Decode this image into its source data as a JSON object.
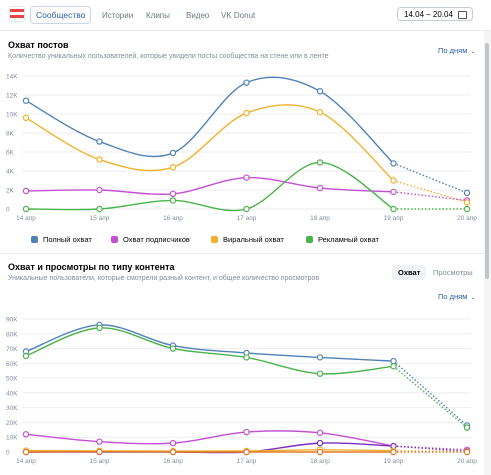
{
  "nav": {
    "tabs": [
      {
        "label": "Сообщество",
        "active": true
      },
      {
        "label": "Истории",
        "active": false
      },
      {
        "label": "Клипы",
        "active": false
      },
      {
        "label": "Видео",
        "active": false
      },
      {
        "label": "VK Donut",
        "active": false
      }
    ],
    "date_range": "14.04 – 20.04",
    "date_icon": "calendar-icon"
  },
  "section1": {
    "title": "Охват постов",
    "subtitle": "Количество уникальных пользователей, которые увидели посты сообщества на стене или в ленте",
    "period_label": "По дням"
  },
  "section2": {
    "title": "Охват и просмотры по типу контента",
    "subtitle": "Уникальные пользователи, которые смотрели разный контент, и общее количество просмотров",
    "period_label": "По дням",
    "toggle": [
      "Охват",
      "Просмотры"
    ]
  },
  "colors": {
    "blue": "#5181b8",
    "pink": "#c44fd4",
    "yellow": "#f2b12d",
    "green": "#4bb34b",
    "purple": "#792ec0",
    "orange": "#e07b2a",
    "teal": "#3aa79e"
  },
  "chart_data": [
    {
      "type": "line",
      "categories": [
        "14 апр",
        "15 апр",
        "16 апр",
        "17 апр",
        "18 апр",
        "19 апр",
        "20 апр"
      ],
      "yticks": [
        "0",
        "2K",
        "4K",
        "6K",
        "8K",
        "10K",
        "12K",
        "14K"
      ],
      "ylim": [
        0,
        14000
      ],
      "grid": true,
      "legend": "bottom",
      "series": [
        {
          "name": "Полный охват",
          "color": "#5181b8",
          "values": [
            11400,
            7100,
            5900,
            13300,
            12400,
            4800,
            1700
          ]
        },
        {
          "name": "Охват подписчиков",
          "color": "#c44fd4",
          "values": [
            1900,
            2000,
            1600,
            3300,
            2200,
            1800,
            900
          ]
        },
        {
          "name": "Виральный охват",
          "color": "#f2b12d",
          "values": [
            9600,
            5200,
            4400,
            10100,
            10200,
            3000,
            700
          ]
        },
        {
          "name": "Рекламный охват",
          "color": "#4bb34b",
          "values": [
            0,
            0,
            900,
            0,
            4900,
            0,
            0
          ]
        }
      ],
      "dotted_last_segment": true
    },
    {
      "type": "line",
      "categories": [
        "14 апр",
        "15 апр",
        "16 апр",
        "17 апр",
        "18 апр",
        "19 апр",
        "20 апр"
      ],
      "yticks": [
        "0",
        "10K",
        "20K",
        "30K",
        "40K",
        "50K",
        "60K",
        "70K",
        "80K",
        "90K"
      ],
      "ylim": [
        0,
        90000
      ],
      "grid": true,
      "series": [
        {
          "color": "#5181b8",
          "values": [
            68000,
            86000,
            72000,
            67000,
            64000,
            61500,
            18000
          ]
        },
        {
          "color": "#4bb34b",
          "values": [
            65000,
            84000,
            70000,
            64000,
            53000,
            58000,
            16500
          ]
        },
        {
          "color": "#c44fd4",
          "values": [
            12000,
            7000,
            6000,
            13500,
            13000,
            4000,
            1500
          ]
        },
        {
          "color": "#792ec0",
          "values": [
            0,
            0,
            0,
            0,
            6000,
            4000,
            500
          ]
        },
        {
          "color": "#f2b12d",
          "values": [
            1000,
            800,
            600,
            700,
            1500,
            900,
            300
          ]
        },
        {
          "color": "#e07b2a",
          "values": [
            0,
            200,
            0,
            0,
            0,
            0,
            0
          ]
        }
      ],
      "dotted_last_segment": true
    }
  ]
}
